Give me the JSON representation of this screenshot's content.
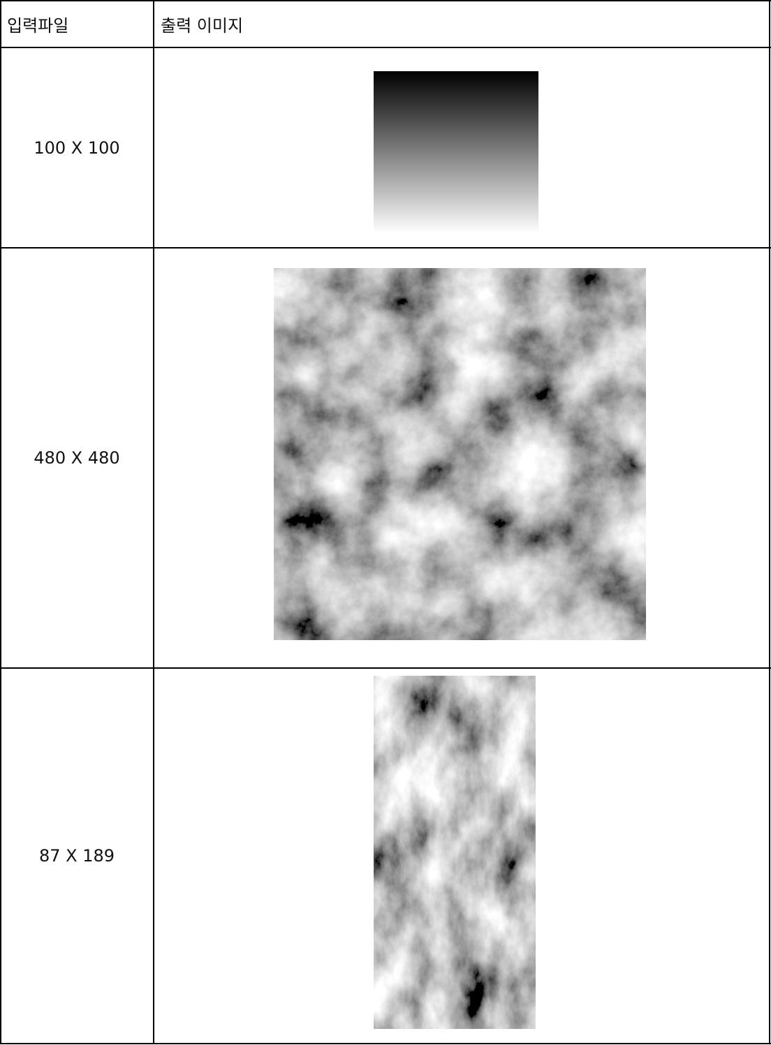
{
  "table": {
    "header": [
      "입력파일",
      "출력 이미지"
    ],
    "rows": [
      {
        "input": "100 X 100"
      },
      {
        "input": "480 X 480"
      },
      {
        "input": "87 X 189"
      }
    ]
  }
}
